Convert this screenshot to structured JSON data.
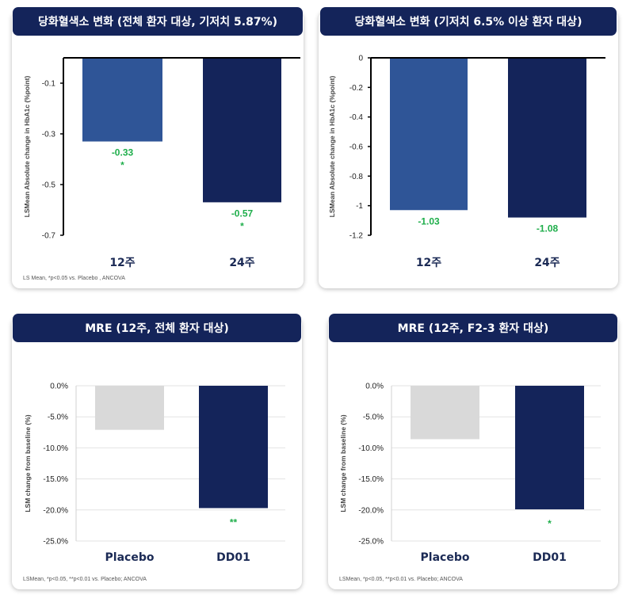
{
  "panels": [
    {
      "header": "당화혈색소 변화 (전체 환자 대상, 기저치 5.87%)",
      "footnote": "LS Mean, *p<0.05 vs. Placebo , ANCOVA"
    },
    {
      "header": "당화혈색소 변화 (기저치 6.5% 이상 환자 대상)",
      "footnote": ""
    },
    {
      "header": "MRE (12주, 전체 환자 대상)",
      "footnote": "LSMean, *p<0.05, **p<0.01 vs. Placebo; ANCOVA"
    },
    {
      "header": "MRE (12주, F2-3 환자 대상)",
      "footnote": "LSMean, *p<0.05, **p<0.01 vs. Placebo; ANCOVA"
    }
  ],
  "chart_data": [
    {
      "type": "bar",
      "title": "당화혈색소 변화 (전체 환자 대상, 기저치 5.87%)",
      "ylabel": "LSMean Absolute change in HbA1c (%point)",
      "categories": [
        "12주",
        "24주"
      ],
      "values": [
        -0.33,
        -0.57
      ],
      "data_labels": [
        "-0.33",
        "-0.57"
      ],
      "significance": [
        "*",
        "*"
      ],
      "colors": [
        "#2f5597",
        "#14245a"
      ],
      "yticks": [
        "-0.1",
        "-0.3",
        "-0.5",
        "-0.7"
      ],
      "ylim": [
        -0.7,
        0
      ],
      "grid": false
    },
    {
      "type": "bar",
      "title": "당화혈색소 변화 (기저치 6.5% 이상 환자 대상)",
      "ylabel": "LSMean Absolute change in HbA1c (%point)",
      "categories": [
        "12주",
        "24주"
      ],
      "values": [
        -1.03,
        -1.08
      ],
      "data_labels": [
        "-1.03",
        "-1.08"
      ],
      "significance": [
        "",
        ""
      ],
      "colors": [
        "#2f5597",
        "#14245a"
      ],
      "yticks": [
        "0",
        "-0.2",
        "-0.4",
        "-0.6",
        "-0.8",
        "-1",
        "-1.2"
      ],
      "ylim": [
        -1.2,
        0
      ],
      "grid": false
    },
    {
      "type": "bar",
      "title": "MRE (12주, 전체 환자 대상)",
      "ylabel": "LSM change from baseline (%)",
      "categories": [
        "Placebo",
        "DD01"
      ],
      "values": [
        -7.1,
        -19.7
      ],
      "data_labels": [
        "",
        ""
      ],
      "significance": [
        "",
        "**"
      ],
      "colors": [
        "#d9d9d9",
        "#14245a"
      ],
      "yticks": [
        "0.0%",
        "-5.0%",
        "-10.0%",
        "-15.0%",
        "-20.0%",
        "-25.0%"
      ],
      "ylim": [
        -25,
        0
      ],
      "grid": true
    },
    {
      "type": "bar",
      "title": "MRE (12주, F2-3 환자 대상)",
      "ylabel": "LSM change from baseline (%)",
      "categories": [
        "Placebo",
        "DD01"
      ],
      "values": [
        -8.6,
        -19.9
      ],
      "data_labels": [
        "",
        ""
      ],
      "significance": [
        "",
        "*"
      ],
      "colors": [
        "#d9d9d9",
        "#14245a"
      ],
      "yticks": [
        "0.0%",
        "-5.0%",
        "-10.0%",
        "-15.0%",
        "-20.0%",
        "-25.0%"
      ],
      "ylim": [
        -25,
        0
      ],
      "grid": true
    }
  ]
}
